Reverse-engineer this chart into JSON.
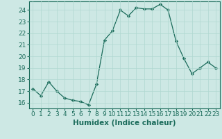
{
  "x": [
    0,
    1,
    2,
    3,
    4,
    5,
    6,
    7,
    8,
    9,
    10,
    11,
    12,
    13,
    14,
    15,
    16,
    17,
    18,
    19,
    20,
    21,
    22,
    23
  ],
  "y": [
    17.2,
    16.6,
    17.8,
    17.0,
    16.4,
    16.2,
    16.1,
    15.8,
    17.6,
    21.4,
    22.2,
    24.0,
    23.5,
    24.2,
    24.1,
    24.1,
    24.5,
    24.0,
    21.3,
    19.8,
    18.5,
    19.0,
    19.5,
    19.0
  ],
  "bg_color": "#cde8e4",
  "line_color": "#1a6b5a",
  "marker_color": "#1a6b5a",
  "grid_color": "#b0d8d0",
  "xlabel": "Humidex (Indice chaleur)",
  "ylim": [
    15.5,
    24.75
  ],
  "yticks": [
    16,
    17,
    18,
    19,
    20,
    21,
    22,
    23,
    24
  ],
  "xticks": [
    0,
    1,
    2,
    3,
    4,
    5,
    6,
    7,
    8,
    9,
    10,
    11,
    12,
    13,
    14,
    15,
    16,
    17,
    18,
    19,
    20,
    21,
    22,
    23
  ],
  "xlabel_fontsize": 7.5,
  "tick_fontsize": 6.5
}
